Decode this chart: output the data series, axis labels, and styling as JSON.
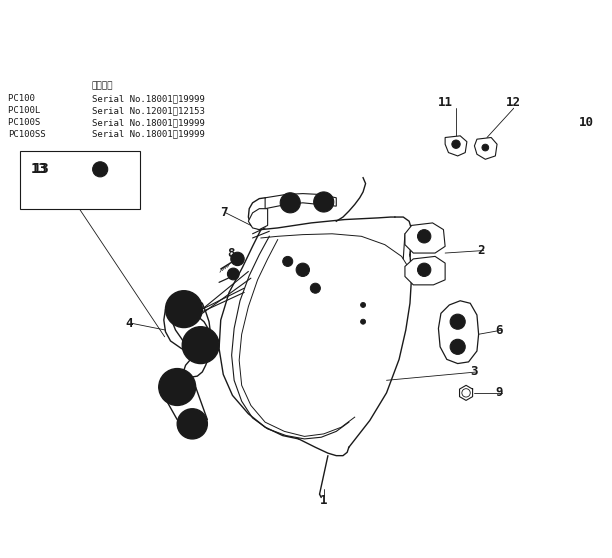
{
  "bg_color": "#ffffff",
  "line_color": "#1a1a1a",
  "figsize": [
    6.12,
    5.58
  ],
  "dpi": 100,
  "serial_header": "適用号機",
  "serial_lines": [
    [
      "PC100  ",
      "Serial No.18001～19999"
    ],
    [
      "PC100L ",
      "Serial No.12001～12153"
    ],
    [
      "PC100S ",
      "Serial No.18001～19999"
    ],
    [
      "PC100SS",
      "Serial No.18001～19999"
    ]
  ]
}
